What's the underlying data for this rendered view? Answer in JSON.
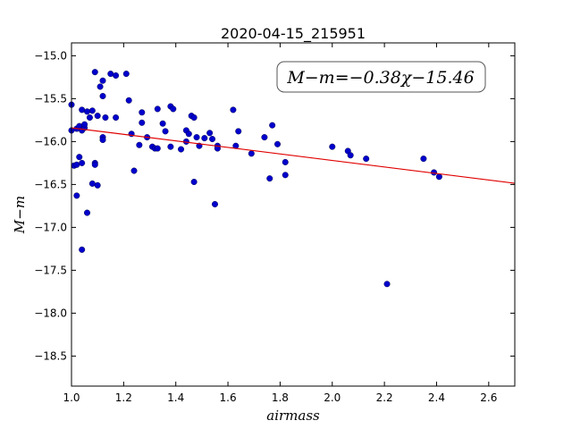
{
  "chart_data": {
    "type": "scatter",
    "title": "2020-04-15_215951",
    "xlabel": "airmass",
    "ylabel": "M−m",
    "xlim": [
      1.0,
      2.7
    ],
    "ylim": [
      -18.85,
      -14.85
    ],
    "x_ticks": [
      1.0,
      1.2,
      1.4,
      1.6,
      1.8,
      2.0,
      2.2,
      2.4,
      2.6
    ],
    "x_tick_labels": [
      "1.0",
      "1.2",
      "1.4",
      "1.6",
      "1.8",
      "2.0",
      "2.2",
      "2.4",
      "2.6"
    ],
    "y_ticks": [
      -15.0,
      -15.5,
      -16.0,
      -16.5,
      -17.0,
      -17.5,
      -18.0,
      -18.5
    ],
    "y_tick_labels": [
      "−15.0",
      "−15.5",
      "−16.0",
      "−16.5",
      "−17.0",
      "−17.5",
      "−18.0",
      "−18.5"
    ],
    "grid": false,
    "annotation": "M−m=−0.38χ−15.46",
    "fit": {
      "slope": -0.38,
      "intercept": -15.46,
      "color": "#e00000"
    },
    "point_color": "#0000cc",
    "points": [
      [
        1.0,
        -15.57
      ],
      [
        1.0,
        -15.87
      ],
      [
        1.01,
        -16.28
      ],
      [
        1.02,
        -16.27
      ],
      [
        1.02,
        -15.85
      ],
      [
        1.02,
        -16.63
      ],
      [
        1.03,
        -16.18
      ],
      [
        1.03,
        -15.82
      ],
      [
        1.04,
        -15.63
      ],
      [
        1.04,
        -15.87
      ],
      [
        1.04,
        -16.25
      ],
      [
        1.04,
        -17.26
      ],
      [
        1.05,
        -15.84
      ],
      [
        1.05,
        -15.8
      ],
      [
        1.06,
        -15.65
      ],
      [
        1.06,
        -16.83
      ],
      [
        1.07,
        -15.72
      ],
      [
        1.08,
        -15.64
      ],
      [
        1.08,
        -16.49
      ],
      [
        1.09,
        -15.19
      ],
      [
        1.09,
        -16.25
      ],
      [
        1.09,
        -16.27
      ],
      [
        1.1,
        -16.51
      ],
      [
        1.1,
        -15.7
      ],
      [
        1.11,
        -15.36
      ],
      [
        1.12,
        -15.29
      ],
      [
        1.12,
        -15.95
      ],
      [
        1.12,
        -15.47
      ],
      [
        1.12,
        -15.98
      ],
      [
        1.13,
        -15.72
      ],
      [
        1.15,
        -15.21
      ],
      [
        1.17,
        -15.23
      ],
      [
        1.17,
        -15.72
      ],
      [
        1.21,
        -15.21
      ],
      [
        1.22,
        -15.52
      ],
      [
        1.23,
        -15.91
      ],
      [
        1.24,
        -16.34
      ],
      [
        1.26,
        -16.04
      ],
      [
        1.27,
        -15.66
      ],
      [
        1.27,
        -15.78
      ],
      [
        1.29,
        -15.95
      ],
      [
        1.31,
        -16.06
      ],
      [
        1.32,
        -16.08
      ],
      [
        1.33,
        -15.62
      ],
      [
        1.33,
        -16.08
      ],
      [
        1.35,
        -15.79
      ],
      [
        1.36,
        -15.88
      ],
      [
        1.38,
        -15.59
      ],
      [
        1.38,
        -16.06
      ],
      [
        1.39,
        -15.62
      ],
      [
        1.42,
        -16.09
      ],
      [
        1.44,
        -15.87
      ],
      [
        1.44,
        -16.0
      ],
      [
        1.45,
        -15.91
      ],
      [
        1.46,
        -15.7
      ],
      [
        1.47,
        -16.47
      ],
      [
        1.47,
        -15.72
      ],
      [
        1.48,
        -15.95
      ],
      [
        1.49,
        -16.05
      ],
      [
        1.51,
        -15.96
      ],
      [
        1.53,
        -15.9
      ],
      [
        1.54,
        -15.97
      ],
      [
        1.55,
        -16.73
      ],
      [
        1.56,
        -16.05
      ],
      [
        1.56,
        -16.08
      ],
      [
        1.62,
        -15.63
      ],
      [
        1.63,
        -16.05
      ],
      [
        1.64,
        -15.88
      ],
      [
        1.69,
        -16.14
      ],
      [
        1.74,
        -15.95
      ],
      [
        1.76,
        -16.43
      ],
      [
        1.77,
        -15.81
      ],
      [
        1.79,
        -16.03
      ],
      [
        1.82,
        -16.24
      ],
      [
        1.82,
        -16.39
      ],
      [
        2.0,
        -16.06
      ],
      [
        2.06,
        -16.11
      ],
      [
        2.07,
        -16.16
      ],
      [
        2.13,
        -16.2
      ],
      [
        2.21,
        -17.66
      ],
      [
        2.35,
        -16.2
      ],
      [
        2.39,
        -16.36
      ],
      [
        2.41,
        -16.41
      ]
    ]
  }
}
